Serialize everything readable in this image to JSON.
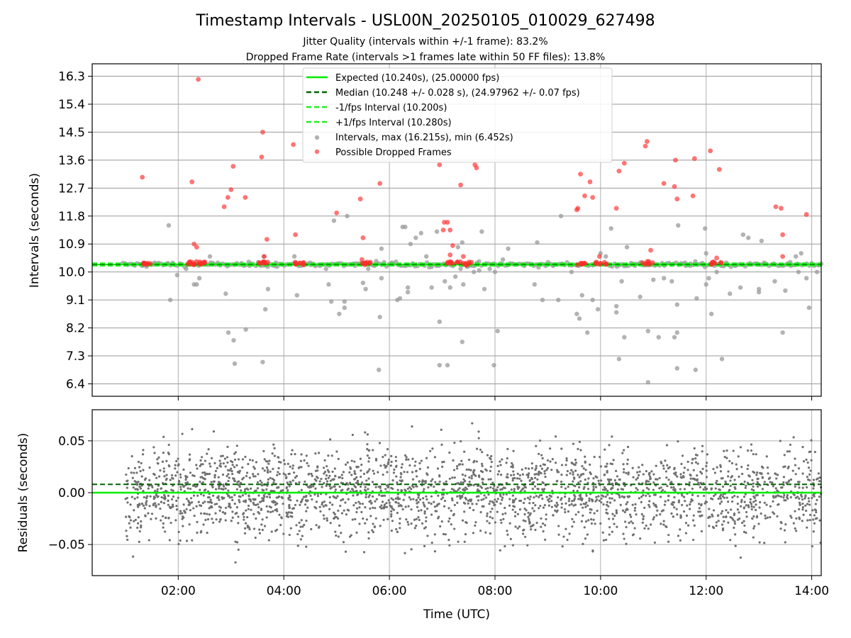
{
  "title": "Timestamp Intervals - USL00N_20250105_010029_627498",
  "subtitle_1": "Jitter Quality (intervals within +/-1 frame): 83.2%",
  "subtitle_2": "Dropped Frame Rate (intervals >1 frames late within 50 FF files): 13.8%",
  "colors": {
    "expected": "#00ee00",
    "median": "#006400",
    "interval_band": "#22ee22",
    "intervals": "#9a9a9a",
    "dropped": "#ff2b2b",
    "residuals": "#707070",
    "grid": "#b0b0b0",
    "h_grid": "#999999"
  },
  "chart_data": [
    {
      "type": "scatter",
      "ylabel": "Intervals (seconds)",
      "ylim": [
        6.0,
        16.7
      ],
      "xlim_hours": [
        0.37,
        14.18
      ],
      "y_ticks": [
        "6.4",
        "7.3",
        "8.2",
        "9.1",
        "10.0",
        "10.9",
        "11.8",
        "12.7",
        "13.6",
        "14.5",
        "15.4",
        "16.3"
      ],
      "y_tick_values": [
        6.4,
        7.3,
        8.2,
        9.1,
        10.0,
        10.9,
        11.8,
        12.7,
        13.6,
        14.5,
        15.4,
        16.3
      ],
      "legend_position": "top-center",
      "grid": true,
      "lines": [
        {
          "name": "Expected (10.240s), (25.00000 fps)",
          "y": 10.24,
          "style": "solid"
        },
        {
          "name": "Median (10.248 +/- 0.028 s), (24.97962 +/- 0.07 fps)",
          "y": 10.248,
          "style": "dashed"
        },
        {
          "name": "-1/fps Interval (10.200s)",
          "y": 10.2,
          "style": "dashed"
        },
        {
          "name": "+1/fps Interval (10.280s)",
          "y": 10.28,
          "style": "dashed"
        }
      ],
      "series": [
        {
          "name": "Intervals, max (16.215s), min (6.452s)",
          "points": [
            [
              1.32,
              10.2
            ],
            [
              1.55,
              10.3
            ],
            [
              1.8,
              10.28
            ],
            [
              1.82,
              11.5
            ],
            [
              1.85,
              9.1
            ],
            [
              1.98,
              9.9
            ],
            [
              2.15,
              10.1
            ],
            [
              2.3,
              9.6
            ],
            [
              2.35,
              9.6
            ],
            [
              2.4,
              9.8
            ],
            [
              2.45,
              10.3
            ],
            [
              2.6,
              10.5
            ],
            [
              2.9,
              9.3
            ],
            [
              2.95,
              8.05
            ],
            [
              3.05,
              7.8
            ],
            [
              3.07,
              7.05
            ],
            [
              3.28,
              8.15
            ],
            [
              3.35,
              10.2
            ],
            [
              3.62,
              10.5
            ],
            [
              3.65,
              8.8
            ],
            [
              3.6,
              7.1
            ],
            [
              3.7,
              9.45
            ],
            [
              3.85,
              10.3
            ],
            [
              4.2,
              10.5
            ],
            [
              4.25,
              9.25
            ],
            [
              4.5,
              10.3
            ],
            [
              4.8,
              10.1
            ],
            [
              4.85,
              9.6
            ],
            [
              4.9,
              9.05
            ],
            [
              4.95,
              11.65
            ],
            [
              5.05,
              8.65
            ],
            [
              5.15,
              8.85
            ],
            [
              5.15,
              9.05
            ],
            [
              5.2,
              11.8
            ],
            [
              5.35,
              10.2
            ],
            [
              5.5,
              9.65
            ],
            [
              5.55,
              9.45
            ],
            [
              5.6,
              10.1
            ],
            [
              5.75,
              10.35
            ],
            [
              5.8,
              6.85
            ],
            [
              5.82,
              8.55
            ],
            [
              5.85,
              10.75
            ],
            [
              5.85,
              9.8
            ],
            [
              6.05,
              10.3
            ],
            [
              6.15,
              9.1
            ],
            [
              6.2,
              9.15
            ],
            [
              6.25,
              11.45
            ],
            [
              6.3,
              11.45
            ],
            [
              6.35,
              9.35
            ],
            [
              6.35,
              9.5
            ],
            [
              6.4,
              10.9
            ],
            [
              6.5,
              11.1
            ],
            [
              6.6,
              11.25
            ],
            [
              6.7,
              10.5
            ],
            [
              6.8,
              9.5
            ],
            [
              6.9,
              11.3
            ],
            [
              6.95,
              8.4
            ],
            [
              6.95,
              7.0
            ],
            [
              7.05,
              9.7
            ],
            [
              7.1,
              7.0
            ],
            [
              7.15,
              9.5
            ],
            [
              7.25,
              9.85
            ],
            [
              7.3,
              10.8
            ],
            [
              7.35,
              10.1
            ],
            [
              7.38,
              10.95
            ],
            [
              7.38,
              7.75
            ],
            [
              7.4,
              9.6
            ],
            [
              7.5,
              10.2
            ],
            [
              7.6,
              10.0
            ],
            [
              7.7,
              10.05
            ],
            [
              7.75,
              11.3
            ],
            [
              7.8,
              9.45
            ],
            [
              7.9,
              10.1
            ],
            [
              7.98,
              7.0
            ],
            [
              8.0,
              10.0
            ],
            [
              8.05,
              8.1
            ],
            [
              8.15,
              10.4
            ],
            [
              8.25,
              10.75
            ],
            [
              8.35,
              10.25
            ],
            [
              8.55,
              10.25
            ],
            [
              8.75,
              9.6
            ],
            [
              8.8,
              10.95
            ],
            [
              8.9,
              9.1
            ],
            [
              9.1,
              10.2
            ],
            [
              9.2,
              9.1
            ],
            [
              9.25,
              11.8
            ],
            [
              9.45,
              10.0
            ],
            [
              9.55,
              8.65
            ],
            [
              9.6,
              8.5
            ],
            [
              9.65,
              9.25
            ],
            [
              9.75,
              8.05
            ],
            [
              9.85,
              9.1
            ],
            [
              9.95,
              8.8
            ],
            [
              10.0,
              10.6
            ],
            [
              10.1,
              10.5
            ],
            [
              10.2,
              11.4
            ],
            [
              10.3,
              8.9
            ],
            [
              10.3,
              8.7
            ],
            [
              10.35,
              7.2
            ],
            [
              10.4,
              9.7
            ],
            [
              10.45,
              7.9
            ],
            [
              10.5,
              10.8
            ],
            [
              10.65,
              10.2
            ],
            [
              10.75,
              9.2
            ],
            [
              10.9,
              6.45
            ],
            [
              10.9,
              8.1
            ],
            [
              11.0,
              9.75
            ],
            [
              11.1,
              7.9
            ],
            [
              11.2,
              9.8
            ],
            [
              11.35,
              9.7
            ],
            [
              11.4,
              7.9
            ],
            [
              11.45,
              8.05
            ],
            [
              11.45,
              6.9
            ],
            [
              11.45,
              8.95
            ],
            [
              11.47,
              11.5
            ],
            [
              11.6,
              10.3
            ],
            [
              11.7,
              10.2
            ],
            [
              11.8,
              6.85
            ],
            [
              11.82,
              9.15
            ],
            [
              11.98,
              11.4
            ],
            [
              12.0,
              10.6
            ],
            [
              12.0,
              9.6
            ],
            [
              12.05,
              9.8
            ],
            [
              12.1,
              8.65
            ],
            [
              12.2,
              10.0
            ],
            [
              12.3,
              7.2
            ],
            [
              12.45,
              9.3
            ],
            [
              12.55,
              10.2
            ],
            [
              12.65,
              9.5
            ],
            [
              12.7,
              11.2
            ],
            [
              12.8,
              11.1
            ],
            [
              13.0,
              9.35
            ],
            [
              13.0,
              9.45
            ],
            [
              13.05,
              11.0
            ],
            [
              13.1,
              10.3
            ],
            [
              13.3,
              9.7
            ],
            [
              13.45,
              8.05
            ],
            [
              13.5,
              9.4
            ],
            [
              13.6,
              10.2
            ],
            [
              13.7,
              10.5
            ],
            [
              13.75,
              10.0
            ],
            [
              13.8,
              10.6
            ],
            [
              13.9,
              9.8
            ],
            [
              13.95,
              8.85
            ],
            [
              14.1,
              10.0
            ]
          ]
        },
        {
          "name": "Possible Dropped Frames",
          "points": [
            [
              1.32,
              13.05
            ],
            [
              1.42,
              10.28
            ],
            [
              2.26,
              12.9
            ],
            [
              2.3,
              10.9
            ],
            [
              2.35,
              10.8
            ],
            [
              2.38,
              16.2
            ],
            [
              2.48,
              10.28
            ],
            [
              2.87,
              12.1
            ],
            [
              2.94,
              12.4
            ],
            [
              3.0,
              12.65
            ],
            [
              3.04,
              13.4
            ],
            [
              3.27,
              12.4
            ],
            [
              3.58,
              13.7
            ],
            [
              3.6,
              14.5
            ],
            [
              3.63,
              10.5
            ],
            [
              3.68,
              11.05
            ],
            [
              3.65,
              10.28
            ],
            [
              4.18,
              14.1
            ],
            [
              4.22,
              11.2
            ],
            [
              4.3,
              10.28
            ],
            [
              5.0,
              11.9
            ],
            [
              5.45,
              12.35
            ],
            [
              5.48,
              10.4
            ],
            [
              5.5,
              11.1
            ],
            [
              5.55,
              10.28
            ],
            [
              5.82,
              12.85
            ],
            [
              6.95,
              13.45
            ],
            [
              7.02,
              11.35
            ],
            [
              7.04,
              11.6
            ],
            [
              7.1,
              11.6
            ],
            [
              7.15,
              11.35
            ],
            [
              7.15,
              10.55
            ],
            [
              7.2,
              10.85
            ],
            [
              7.35,
              12.8
            ],
            [
              7.4,
              10.5
            ],
            [
              7.45,
              10.28
            ],
            [
              7.62,
              13.45
            ],
            [
              7.65,
              13.35
            ],
            [
              7.2,
              10.28
            ],
            [
              9.55,
              12.0
            ],
            [
              9.57,
              12.05
            ],
            [
              9.62,
              13.15
            ],
            [
              9.7,
              12.45
            ],
            [
              9.8,
              12.9
            ],
            [
              9.85,
              12.4
            ],
            [
              9.65,
              10.28
            ],
            [
              9.98,
              10.5
            ],
            [
              10.0,
              10.28
            ],
            [
              10.3,
              12.05
            ],
            [
              10.35,
              13.25
            ],
            [
              10.45,
              13.5
            ],
            [
              10.85,
              14.05
            ],
            [
              10.88,
              14.2
            ],
            [
              10.95,
              10.7
            ],
            [
              10.9,
              10.28
            ],
            [
              11.2,
              12.85
            ],
            [
              11.4,
              12.75
            ],
            [
              11.42,
              13.6
            ],
            [
              11.45,
              12.35
            ],
            [
              11.75,
              12.45
            ],
            [
              11.78,
              13.65
            ],
            [
              12.08,
              13.9
            ],
            [
              12.2,
              10.45
            ],
            [
              12.25,
              13.3
            ],
            [
              12.15,
              10.28
            ],
            [
              13.32,
              12.1
            ],
            [
              13.42,
              12.05
            ],
            [
              13.45,
              11.2
            ],
            [
              13.45,
              10.5
            ],
            [
              13.9,
              11.85
            ]
          ]
        }
      ],
      "clusters": [
        [
          1.45,
          10.28
        ],
        [
          2.25,
          10.28
        ],
        [
          2.4,
          10.28
        ],
        [
          3.6,
          10.28
        ],
        [
          4.3,
          10.28
        ],
        [
          5.55,
          10.28
        ],
        [
          7.2,
          10.28
        ],
        [
          7.45,
          10.28
        ],
        [
          9.65,
          10.28
        ],
        [
          10.0,
          10.28
        ],
        [
          10.9,
          10.28
        ],
        [
          12.2,
          10.28
        ]
      ]
    },
    {
      "type": "scatter",
      "ylabel": "Residuals (seconds)",
      "xlabel": "Time (UTC)",
      "ylim": [
        -0.08,
        0.08
      ],
      "xlim_hours": [
        0.37,
        14.18
      ],
      "y_ticks": [
        "−0.05",
        "0.00",
        "0.05"
      ],
      "y_tick_values": [
        -0.05,
        0.0,
        0.05
      ],
      "x_ticks": [
        "02:00",
        "04:00",
        "06:00",
        "08:00",
        "10:00",
        "12:00",
        "14:00"
      ],
      "x_tick_values": [
        2,
        4,
        6,
        8,
        10,
        12,
        14
      ],
      "expected_residual": 0.0,
      "median_residual": 0.008,
      "residual_span": [
        1.0,
        14.18
      ],
      "residual_spread": 0.03,
      "grid": true
    }
  ]
}
